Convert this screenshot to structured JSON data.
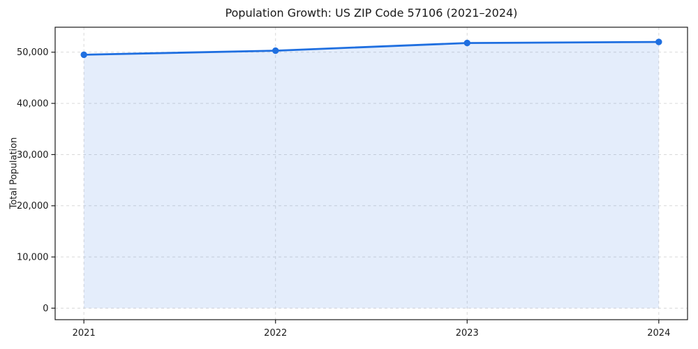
{
  "figure": {
    "background": "#ffffff"
  },
  "chart_data": {
    "type": "line",
    "title": "Population Growth: US ZIP Code 57106 (2021–2024)",
    "xlabel": "",
    "ylabel": "Total Population",
    "x": [
      2021,
      2022,
      2023,
      2024
    ],
    "xtick_labels": [
      "2021",
      "2022",
      "2023",
      "2024"
    ],
    "series": [
      {
        "name": "Total Population",
        "values": [
          49500,
          50300,
          51800,
          52000
        ],
        "line_color": "#1f6fe0",
        "marker": "circle",
        "area_fill": true,
        "area_fill_color": "rgba(31,111,224,0.12)",
        "area_baseline": 0
      }
    ],
    "xlim": [
      2020.85,
      2024.15
    ],
    "ylim": [
      -2250,
      54875
    ],
    "ytick_values": [
      0,
      10000,
      20000,
      30000,
      40000,
      50000
    ],
    "ytick_labels": [
      "0",
      "10,000",
      "20,000",
      "30,000",
      "40,000",
      "50,000"
    ],
    "grid": "both",
    "grid_style": "dashed",
    "grid_color": "#d9d9d9",
    "axis_color": "#1a1a1a",
    "legend": "none"
  }
}
